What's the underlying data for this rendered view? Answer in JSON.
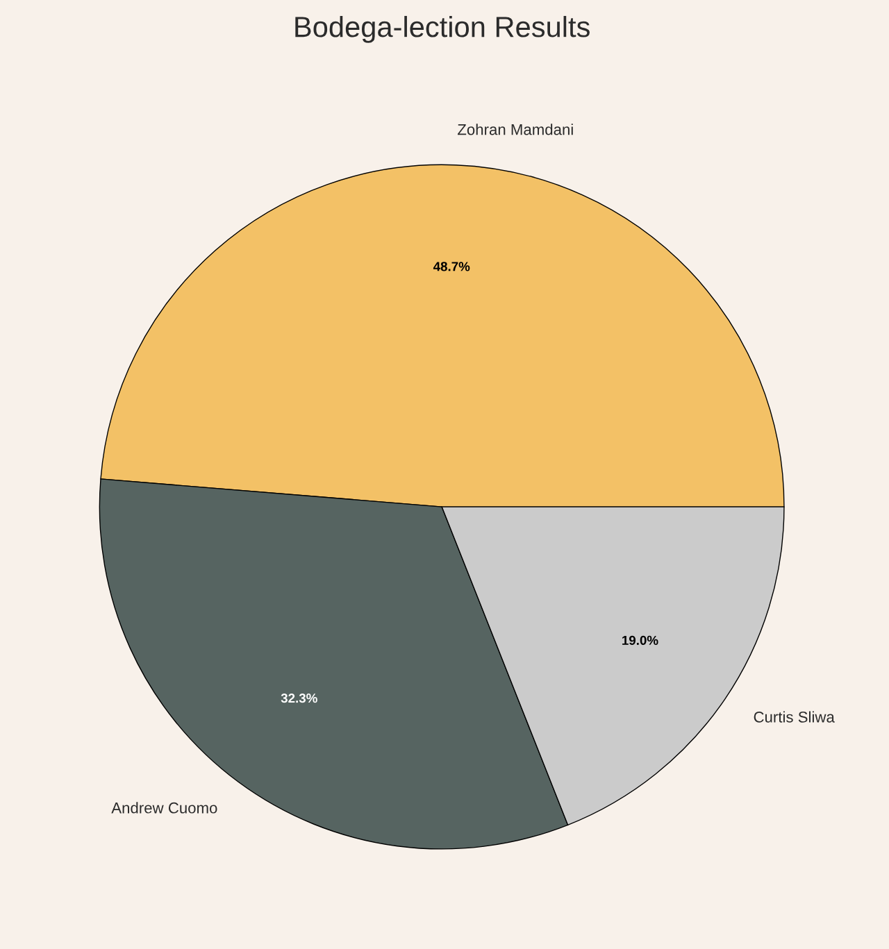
{
  "chart_data": {
    "type": "pie",
    "title": "Bodega-lection Results",
    "categories": [
      "Zohran Mamdani",
      "Andrew Cuomo",
      "Curtis Sliwa"
    ],
    "values": [
      48.7,
      32.3,
      19.0
    ],
    "colors": [
      "#f3c166",
      "#566461",
      "#cbcbcb"
    ],
    "value_labels": [
      "48.7%",
      "32.3%",
      "19.0%"
    ]
  }
}
